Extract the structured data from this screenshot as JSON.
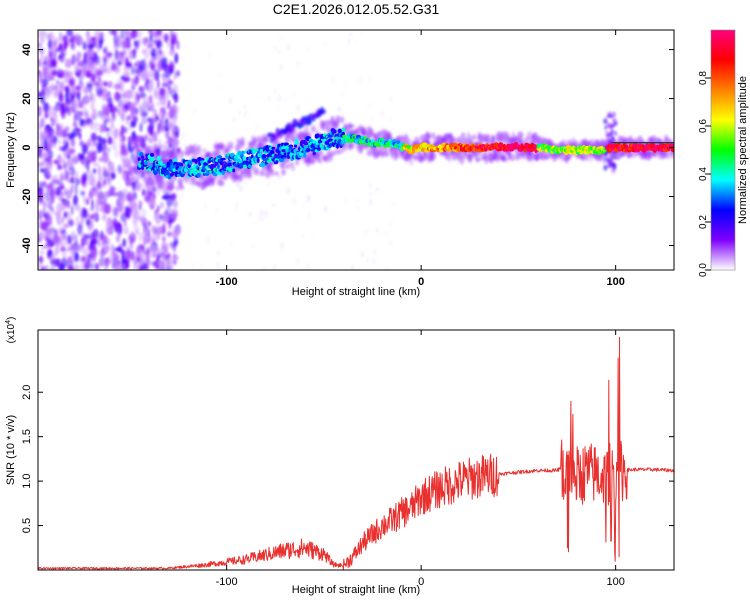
{
  "figure": {
    "title": "C2E1.2026.012.05.52.G31"
  },
  "chart_data": [
    {
      "type": "heatmap",
      "xlabel": "Height of straight line (km)",
      "ylabel": "Frequency (Hz)",
      "xlim": [
        -197,
        130
      ],
      "ylim": [
        -50,
        48
      ],
      "x_ticks": [
        -100,
        0,
        100
      ],
      "y_ticks": [
        -40,
        -20,
        0,
        20,
        40
      ],
      "colorbar": {
        "label": "Normalized spectral amplitude",
        "range": [
          0,
          1
        ],
        "ticks": [
          0.0,
          0.2,
          0.4,
          0.6,
          0.8
        ],
        "colormap": [
          "#ffffff",
          "#8000ff",
          "#0000ff",
          "#00ffff",
          "#00ff00",
          "#ffff00",
          "#ff8000",
          "#ff0000",
          "#ff0080"
        ]
      },
      "ridge": {
        "x": [
          -143,
          -130,
          -110,
          -90,
          -70,
          -55,
          -45,
          -35,
          -25,
          -15,
          -5,
          0,
          10,
          30,
          60,
          70,
          80,
          90,
          95,
          100,
          130
        ],
        "frequency": [
          -5,
          -9,
          -8,
          -5,
          -2,
          1,
          4,
          4,
          2,
          2,
          -1,
          0,
          0,
          0,
          0,
          -1,
          -1,
          -1,
          -1,
          0,
          0
        ]
      }
    },
    {
      "type": "line",
      "xlabel": "Height of straight line (km)",
      "ylabel": "SNR (10 * v/v)",
      "y_multiplier": "(x10^4)",
      "xlim": [
        -197,
        130
      ],
      "ylim": [
        0,
        2.7
      ],
      "x_ticks": [
        -100,
        0,
        100
      ],
      "y_ticks": [
        0.5,
        1.0,
        1.5,
        2.0
      ],
      "series": [
        {
          "color": "#e8302e",
          "x": [
            -197,
            -150,
            -130,
            -110,
            -90,
            -80,
            -70,
            -60,
            -50,
            -45,
            -40,
            -35,
            -30,
            -25,
            -20,
            -15,
            -10,
            -5,
            0,
            10,
            20,
            30,
            40,
            50,
            60,
            70,
            72,
            75,
            80,
            85,
            90,
            95,
            98,
            100,
            103,
            110,
            120,
            130
          ],
          "y": [
            0.02,
            0.02,
            0.02,
            0.06,
            0.12,
            0.17,
            0.22,
            0.25,
            0.18,
            0.06,
            0.05,
            0.15,
            0.3,
            0.4,
            0.5,
            0.56,
            0.64,
            0.7,
            0.82,
            0.92,
            1.0,
            1.05,
            1.08,
            1.1,
            1.12,
            1.12,
            1.15,
            1.1,
            1.05,
            1.1,
            1.08,
            1.05,
            1.1,
            1.1,
            1.12,
            1.13,
            1.13,
            1.12
          ]
        }
      ]
    }
  ]
}
